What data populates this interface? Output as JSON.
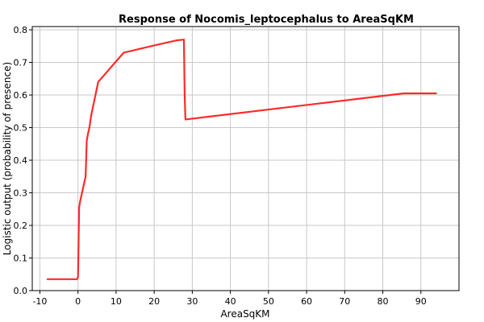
{
  "chart_data": {
    "type": "line",
    "title": "Response of Nocomis_leptocephalus to AreaSqKM",
    "xlabel": "AreaSqKM",
    "ylabel": "Logistic output (probability of presence)",
    "xlim": [
      -12,
      100
    ],
    "ylim": [
      0,
      0.81
    ],
    "x_ticks": [
      -10,
      0,
      10,
      20,
      30,
      40,
      50,
      60,
      70,
      80,
      90
    ],
    "y_ticks": [
      0.0,
      0.1,
      0.2,
      0.3,
      0.4,
      0.5,
      0.6,
      0.7,
      0.8
    ],
    "x_tick_labels": [
      "-10",
      "0",
      "10",
      "20",
      "30",
      "40",
      "50",
      "60",
      "70",
      "80",
      "90"
    ],
    "y_tick_labels": [
      "0.0",
      "0.1",
      "0.2",
      "0.3",
      "0.4",
      "0.5",
      "0.6",
      "0.7",
      "0.8"
    ],
    "grid": true,
    "color": "#ff2a2a",
    "series": [
      {
        "x": [
          -8,
          -0.3,
          0.0,
          0.3,
          0.5,
          2.0,
          2.3,
          2.6,
          3.0,
          3.3,
          3.5,
          4.5,
          5.3,
          12.0,
          20.0,
          26.0,
          27.8,
          28.0,
          28.2,
          85.5,
          94.0
        ],
        "y": [
          0.035,
          0.035,
          0.04,
          0.255,
          0.27,
          0.35,
          0.46,
          0.48,
          0.5,
          0.525,
          0.54,
          0.595,
          0.64,
          0.73,
          0.752,
          0.768,
          0.77,
          0.6,
          0.525,
          0.605,
          0.605
        ]
      }
    ]
  }
}
